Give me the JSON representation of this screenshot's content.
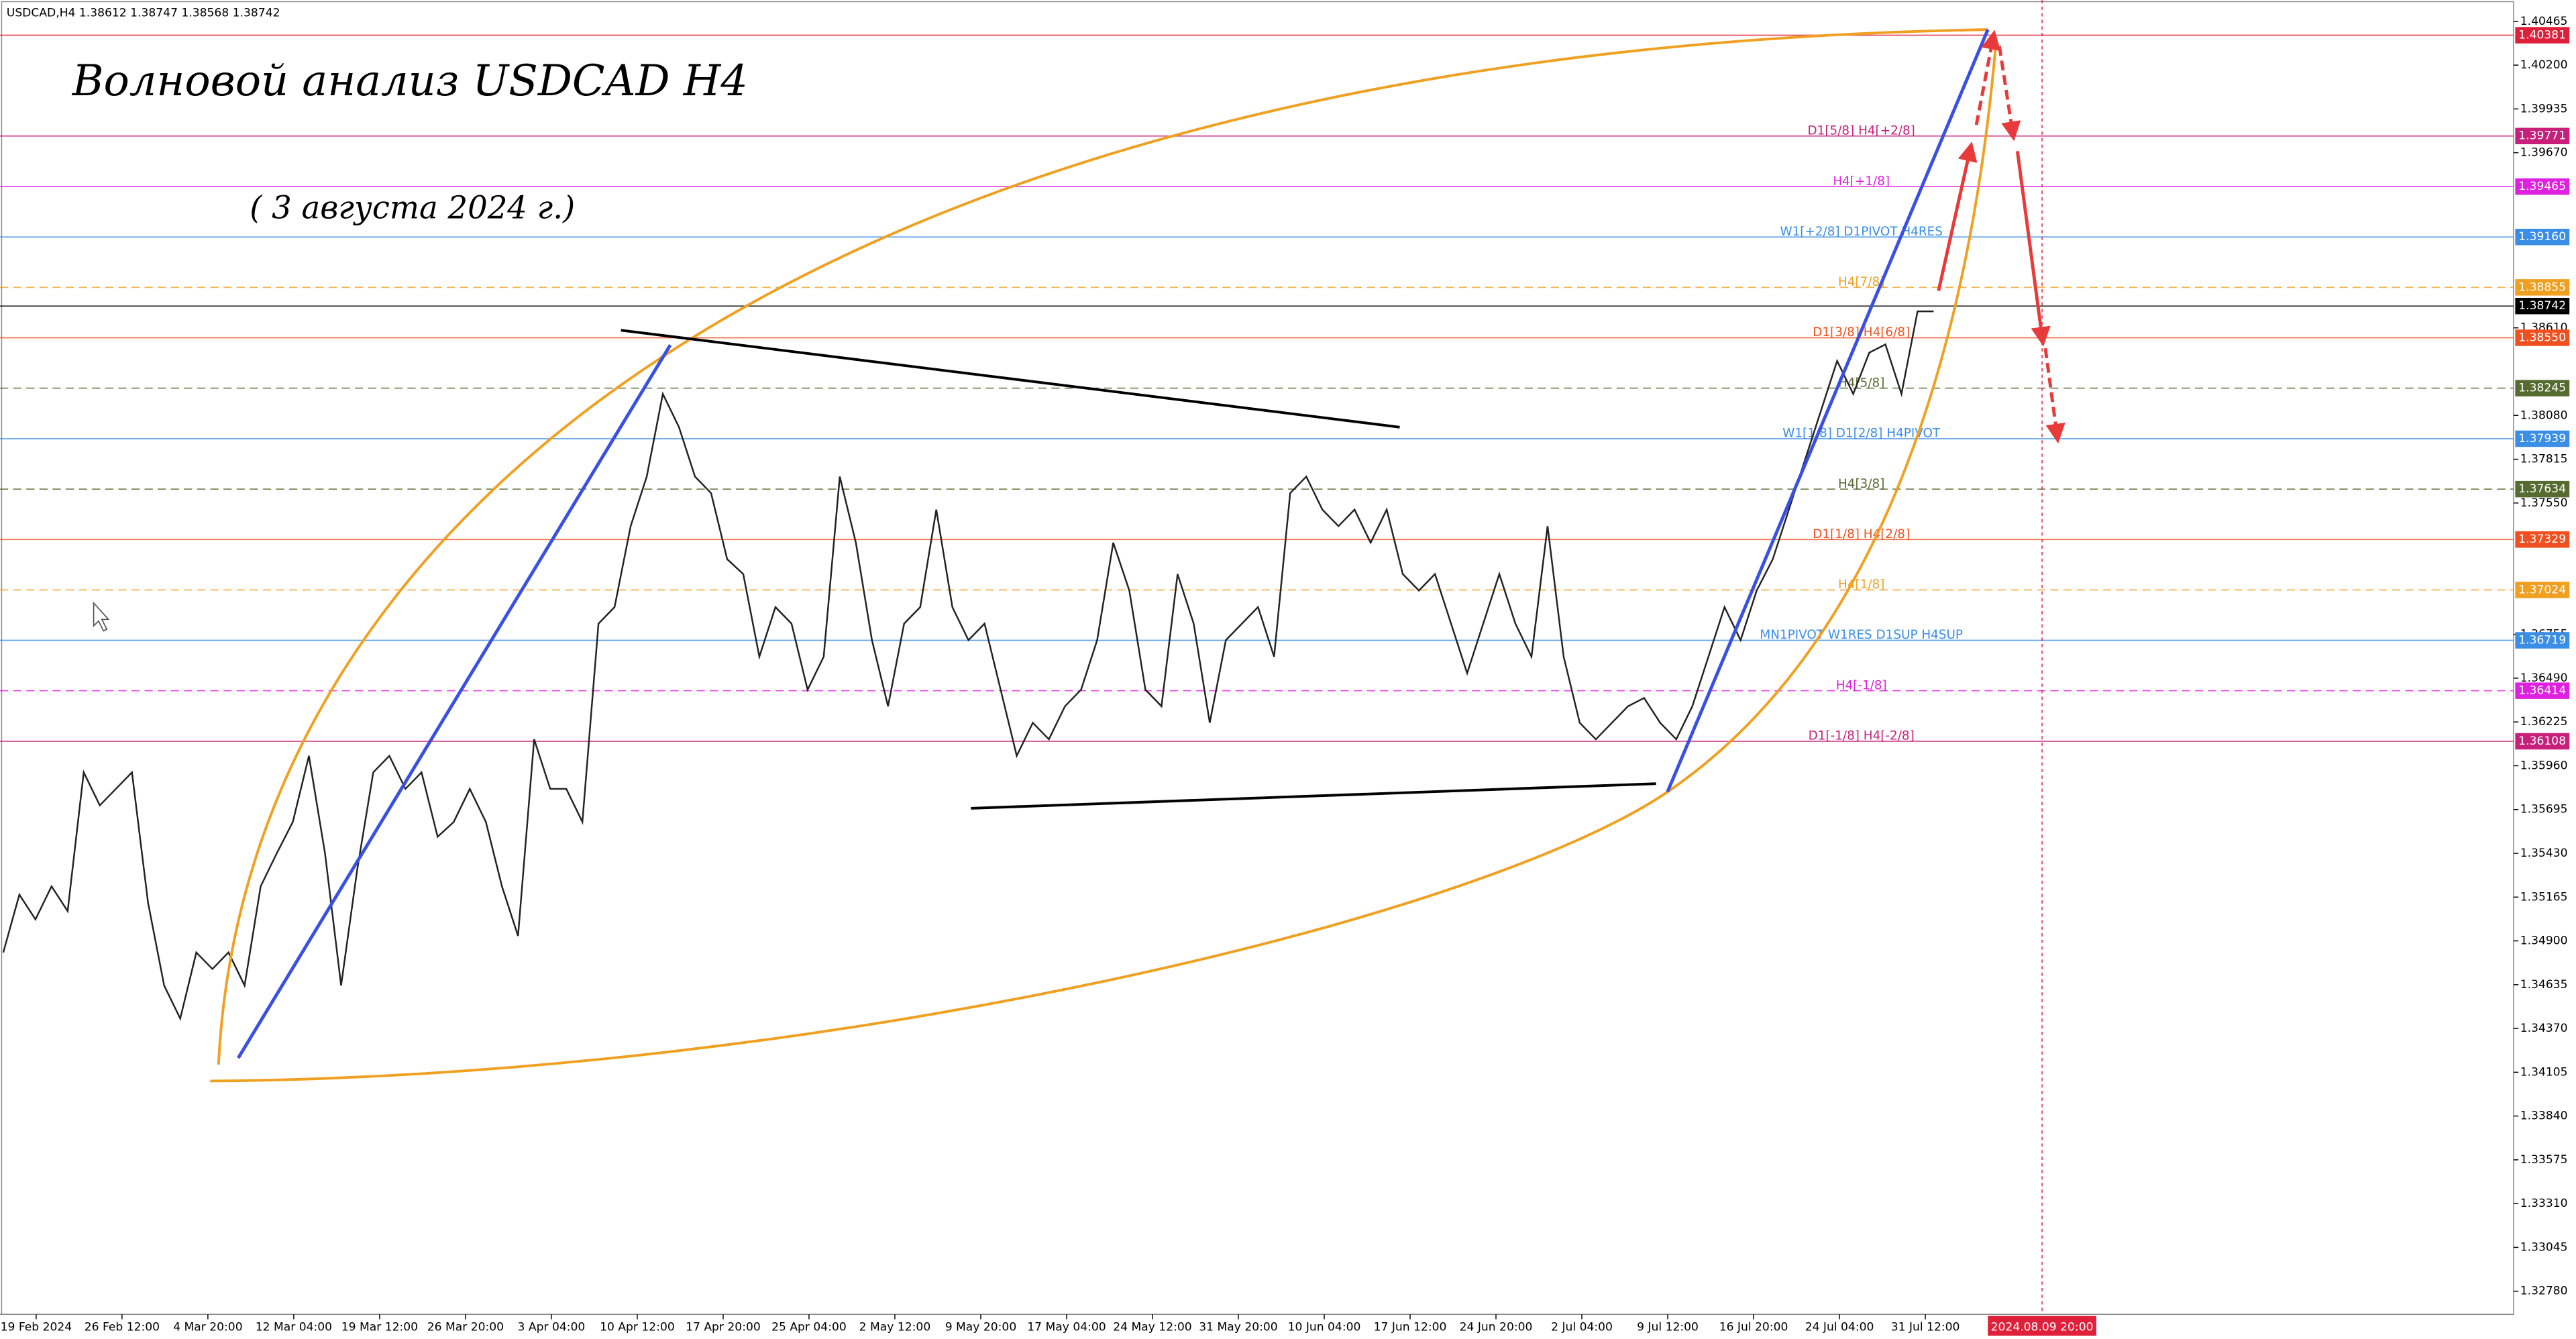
{
  "chart_data": {
    "type": "line",
    "header": "USDCAD,H4  1.38612 1.38747 1.38568 1.38742",
    "title": "Волновой анализ USDCAD H4",
    "subtitle": "( 3 августа 2024 г.)",
    "color": "#222222",
    "ylim": [
      1.3264,
      1.40594
    ],
    "yticks": [
      1.40465,
      {
        "value": 1.402,
        "label": "1.40200"
      },
      1.39935,
      {
        "value": 1.3967,
        "label": "1.39670"
      },
      {
        "value": 1.3861,
        "label": "1.38610"
      },
      {
        "value": 1.3808,
        "label": "1.38080"
      },
      1.37815,
      {
        "value": 1.3755,
        "label": "1.37550"
      },
      1.36755,
      {
        "value": 1.3649,
        "label": "1.36490"
      },
      1.36225,
      {
        "value": 1.3596,
        "label": "1.35960"
      },
      1.35695,
      {
        "value": 1.3543,
        "label": "1.35430"
      },
      1.35165,
      {
        "value": 1.349,
        "label": "1.34900"
      },
      1.34635,
      {
        "value": 1.3437,
        "label": "1.34370"
      },
      1.34105,
      {
        "value": 1.3384,
        "label": "1.33840"
      },
      1.33575,
      {
        "value": 1.3331,
        "label": "1.33310"
      },
      1.33045,
      {
        "value": 1.3278,
        "label": "1.32780"
      }
    ],
    "categories": [
      "19 Feb 2024",
      "26 Feb 12:00",
      "4 Mar 20:00",
      "12 Mar 04:00",
      "19 Mar 12:00",
      "26 Mar 20:00",
      "3 Apr 04:00",
      "10 Apr 12:00",
      "17 Apr 20:00",
      "25 Apr 04:00",
      "2 May 12:00",
      "9 May 20:00",
      "17 May 04:00",
      "24 May 12:00",
      "31 May 20:00",
      "10 Jun 04:00",
      "17 Jun 12:00",
      "24 Jun 20:00",
      "2 Jul 04:00",
      "9 Jul 12:00",
      "16 Jul 20:00",
      "24 Jul 04:00",
      "31 Jul 12:00"
    ],
    "cursor_label": "2024.08.09 20:00",
    "price": {
      "values": [
        1.3483,
        1.3518,
        1.3503,
        1.3523,
        1.3508,
        1.3592,
        1.3572,
        1.3582,
        1.3592,
        1.3513,
        1.3463,
        1.3443,
        1.3483,
        1.3473,
        1.3483,
        1.3463,
        1.3523,
        1.3543,
        1.3562,
        1.3602,
        1.3543,
        1.3463,
        1.3533,
        1.3592,
        1.3602,
        1.3582,
        1.3592,
        1.3553,
        1.3562,
        1.3582,
        1.3562,
        1.3523,
        1.3493,
        1.3612,
        1.3582,
        1.3582,
        1.3562,
        1.3682,
        1.3692,
        1.3741,
        1.3771,
        1.3821,
        1.3801,
        1.3771,
        1.3761,
        1.3721,
        1.3712,
        1.3662,
        1.3692,
        1.3682,
        1.3642,
        1.3662,
        1.3771,
        1.3731,
        1.3672,
        1.3632,
        1.3682,
        1.3692,
        1.3751,
        1.3692,
        1.3672,
        1.3682,
        1.3642,
        1.3602,
        1.3622,
        1.3612,
        1.3632,
        1.3642,
        1.3672,
        1.3731,
        1.3702,
        1.3642,
        1.3632,
        1.3712,
        1.3682,
        1.3622,
        1.3672,
        1.3682,
        1.3692,
        1.3662,
        1.3761,
        1.3771,
        1.3751,
        1.3741,
        1.3751,
        1.3731,
        1.3751,
        1.3712,
        1.3702,
        1.3712,
        1.3682,
        1.3652,
        1.3682,
        1.3712,
        1.3682,
        1.3662,
        1.3741,
        1.3662,
        1.3622,
        1.3612,
        1.3622,
        1.3632,
        1.3637,
        1.3622,
        1.3612,
        1.3632,
        1.3662,
        1.3692,
        1.3672,
        1.3702,
        1.3721,
        1.3751,
        1.3781,
        1.3811,
        1.3841,
        1.3821,
        1.3846,
        1.3851,
        1.3821,
        1.3871,
        1.3871
      ]
    },
    "levels": [
      {
        "value": 1.40381,
        "label": "1.40381",
        "color": "#e0203a"
      },
      {
        "value": 1.39771,
        "label": "1.39771",
        "name": "D1[5/8] H4[+2/8]",
        "color": "#c8207a"
      },
      {
        "value": 1.39465,
        "label": "1.39465",
        "name": "H4[+1/8]",
        "color": "#e020e0"
      },
      {
        "value": 1.3916,
        "label": "1.39160",
        "name": "W1[+2/8] D1PIVOT H4RES",
        "color": "#3a8ee6"
      },
      {
        "value": 1.38855,
        "label": "1.38855",
        "name": "H4[7/8]",
        "color": "#f0a020",
        "dashed": true
      },
      {
        "value": 1.38742,
        "label": "1.38742",
        "color": "#000000"
      },
      {
        "value": 1.3855,
        "label": "1.38550",
        "name": "D1[3/8] H4[6/8]",
        "color": "#f05020"
      },
      {
        "value": 1.38245,
        "label": "1.38245",
        "name": "H4[5/8]",
        "color": "#556b2f",
        "dashed": true
      },
      {
        "value": 1.37939,
        "label": "1.37939",
        "name": "W1[1/8] D1[2/8] H4PIVOT",
        "color": "#3a8ee6"
      },
      {
        "value": 1.37634,
        "label": "1.37634",
        "name": "H4[3/8]",
        "color": "#556b2f",
        "dashed": true
      },
      {
        "value": 1.37329,
        "label": "1.37329",
        "name": "D1[1/8] H4[2/8]",
        "color": "#f05020"
      },
      {
        "value": 1.37024,
        "label": "1.37024",
        "name": "H4[1/8]",
        "color": "#f0a020",
        "dashed": true
      },
      {
        "value": 1.36719,
        "label": "1.36719",
        "name": "MN1PIVOT W1RES D1SUP H4SUP",
        "color": "#3a8ee6"
      },
      {
        "value": 1.36414,
        "label": "1.36414",
        "name": "H4[-1/8]",
        "color": "#e020e0",
        "dashed": true
      },
      {
        "value": 1.36108,
        "label": "1.36108",
        "name": "D1[-1/8] H4[-2/8]",
        "color": "#c8207a"
      }
    ]
  }
}
